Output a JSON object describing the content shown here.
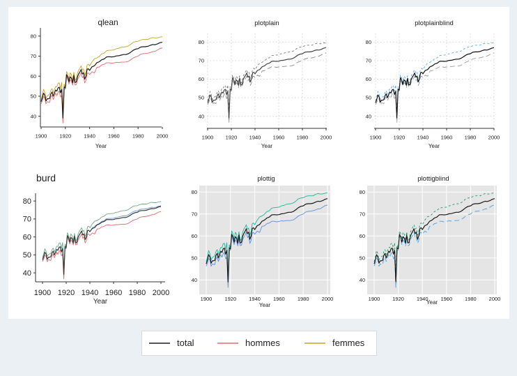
{
  "chart_data": [
    {
      "type": "line",
      "style": "qlean",
      "title": "qlean",
      "xlabel": "Year",
      "ylabel": "",
      "xlim": [
        1900,
        2000
      ],
      "ylim": [
        35,
        82
      ],
      "xticks": [
        "1900",
        "1920",
        "1940",
        "1960",
        "1980",
        "2000"
      ],
      "yticks": [
        "40",
        "50",
        "60",
        "70",
        "80"
      ],
      "grid": false,
      "background": "#ffffff",
      "series": [
        {
          "name": "total",
          "color": "#1a1a1a",
          "dash": ""
        },
        {
          "name": "hommes",
          "color": "#e06b6b",
          "dash": ""
        },
        {
          "name": "femmes",
          "color": "#c9a227",
          "dash": ""
        }
      ]
    },
    {
      "type": "line",
      "style": "plotplain",
      "title": "plotplain",
      "xlabel": "Year",
      "ylabel": "",
      "xlim": [
        1900,
        2000
      ],
      "ylim": [
        35,
        82
      ],
      "xticks": [
        "1900",
        "1920",
        "1940",
        "1960",
        "1980",
        "2000"
      ],
      "yticks": [
        "40",
        "50",
        "60",
        "70",
        "80"
      ],
      "grid": true,
      "background": "#ffffff",
      "series": [
        {
          "name": "total",
          "color": "#444444",
          "dash": ""
        },
        {
          "name": "hommes",
          "color": "#888888",
          "dash": "7,4"
        },
        {
          "name": "femmes",
          "color": "#777777",
          "dash": "3,3"
        }
      ]
    },
    {
      "type": "line",
      "style": "plotplainblind",
      "title": "plotplainblind",
      "xlabel": "Year",
      "ylabel": "",
      "xlim": [
        1900,
        2000
      ],
      "ylim": [
        35,
        82
      ],
      "xticks": [
        "1900",
        "1920",
        "1940",
        "1960",
        "1980",
        "2000"
      ],
      "yticks": [
        "40",
        "50",
        "60",
        "70",
        "80"
      ],
      "grid": true,
      "background": "#ffffff",
      "series": [
        {
          "name": "total",
          "color": "#111111",
          "dash": ""
        },
        {
          "name": "hommes",
          "color": "#999999",
          "dash": "7,4"
        },
        {
          "name": "femmes",
          "color": "#5aa9dd",
          "dash": "3,3"
        }
      ]
    },
    {
      "type": "line",
      "style": "burd",
      "title": "burd",
      "xlabel": "Year",
      "ylabel": "",
      "xlim": [
        1900,
        2000
      ],
      "ylim": [
        35,
        82
      ],
      "xticks": [
        "1900",
        "1920",
        "1940",
        "1960",
        "1980",
        "2000"
      ],
      "yticks": [
        "40",
        "50",
        "60",
        "70",
        "80"
      ],
      "grid": false,
      "background": "#ffffff",
      "series": [
        {
          "name": "total",
          "color": "#3a3a3a",
          "dash": ""
        },
        {
          "name": "hommes",
          "color": "#d96a6a",
          "dash": ""
        },
        {
          "name": "femmes",
          "color": "#6fa987",
          "dash": ""
        },
        {
          "name": "",
          "color": "#6e9fd6",
          "dash": ""
        }
      ]
    },
    {
      "type": "line",
      "style": "plottig",
      "title": "plottig",
      "xlabel": "Year",
      "ylabel": "",
      "xlim": [
        1900,
        2000
      ],
      "ylim": [
        35,
        82
      ],
      "xticks": [
        "1900",
        "1920",
        "1940",
        "1960",
        "1980",
        "2000"
      ],
      "yticks": [
        "40",
        "50",
        "60",
        "70",
        "80"
      ],
      "grid": true,
      "background": "#e5e5e5",
      "series": [
        {
          "name": "total",
          "color": "#1a1a1a",
          "dash": ""
        },
        {
          "name": "hommes",
          "color": "#5b8de0",
          "dash": ""
        },
        {
          "name": "femmes",
          "color": "#1fb59b",
          "dash": ""
        }
      ]
    },
    {
      "type": "line",
      "style": "plottigblind",
      "title": "plottigblind",
      "xlabel": "Year",
      "ylabel": "",
      "xlim": [
        1900,
        2000
      ],
      "ylim": [
        35,
        82
      ],
      "xticks": [
        "1900",
        "1920",
        "1940",
        "1960",
        "1980",
        "2000"
      ],
      "yticks": [
        "40",
        "50",
        "60",
        "70",
        "80"
      ],
      "grid": true,
      "background": "#e5e5e5",
      "series": [
        {
          "name": "total",
          "color": "#1a1a1a",
          "dash": ""
        },
        {
          "name": "hommes",
          "color": "#4aa0e0",
          "dash": "7,4"
        },
        {
          "name": "femmes",
          "color": "#1f9b6b",
          "dash": "3,3"
        }
      ]
    }
  ],
  "series_data": {
    "x": [
      1900,
      1901,
      1902,
      1903,
      1904,
      1905,
      1906,
      1907,
      1908,
      1909,
      1910,
      1911,
      1912,
      1913,
      1914,
      1915,
      1916,
      1917,
      1918,
      1919,
      1920,
      1921,
      1922,
      1923,
      1924,
      1925,
      1926,
      1927,
      1928,
      1929,
      1930,
      1931,
      1932,
      1933,
      1934,
      1935,
      1936,
      1937,
      1938,
      1939,
      1940,
      1942,
      1944,
      1946,
      1948,
      1950,
      1952,
      1954,
      1956,
      1958,
      1960,
      1962,
      1964,
      1966,
      1968,
      1970,
      1972,
      1974,
      1976,
      1978,
      1980,
      1982,
      1984,
      1986,
      1988,
      1990,
      1992,
      1994,
      1996,
      1998,
      2000
    ],
    "total": [
      47.3,
      49.1,
      51.5,
      50.5,
      47.6,
      48.7,
      48.7,
      48.9,
      51.1,
      52.1,
      50.0,
      51.5,
      53.1,
      52.5,
      54.2,
      54.5,
      51.7,
      53.5,
      39.1,
      54.7,
      54.1,
      60.8,
      59.6,
      57.2,
      59.7,
      59.0,
      56.7,
      60.4,
      56.8,
      57.1,
      59.7,
      61.1,
      62.1,
      63.3,
      61.1,
      61.7,
      58.5,
      60.0,
      63.5,
      63.7,
      62.9,
      64.7,
      65.2,
      66.7,
      67.2,
      68.2,
      68.6,
      69.6,
      69.7,
      69.6,
      69.7,
      70.1,
      70.2,
      70.5,
      70.8,
      70.8,
      71.2,
      72.0,
      72.9,
      73.5,
      73.7,
      74.5,
      74.7,
      74.7,
      74.9,
      75.4,
      75.8,
      75.7,
      76.1,
      76.7,
      77.0
    ],
    "hommes": [
      46.3,
      47.6,
      49.8,
      49.1,
      46.2,
      47.3,
      47.1,
      46.9,
      49.5,
      50.5,
      48.4,
      49.9,
      51.5,
      50.3,
      52.0,
      52.5,
      49.6,
      50.3,
      36.6,
      53.5,
      53.6,
      60.0,
      58.4,
      56.1,
      58.1,
      57.6,
      55.5,
      59.0,
      55.6,
      55.8,
      58.1,
      59.4,
      60.3,
      61.7,
      59.3,
      59.9,
      56.6,
      58.0,
      61.4,
      61.6,
      60.8,
      62.2,
      61.6,
      64.4,
      64.6,
      65.6,
      65.9,
      66.7,
      66.7,
      66.4,
      66.6,
      66.9,
      66.8,
      67.0,
      67.0,
      67.1,
      67.4,
      68.2,
      69.1,
      69.6,
      70.0,
      70.9,
      71.2,
      71.3,
      71.5,
      71.8,
      72.3,
      72.4,
      73.1,
      73.8,
      74.1
    ],
    "femmes": [
      48.3,
      50.6,
      53.4,
      52.0,
      49.1,
      50.2,
      50.5,
      50.9,
      52.9,
      53.8,
      51.6,
      53.3,
      54.8,
      54.7,
      56.5,
      56.7,
      53.7,
      56.9,
      42.2,
      56.0,
      54.6,
      62.3,
      61.0,
      58.4,
      61.7,
      60.8,
      57.9,
      61.9,
      58.0,
      58.5,
      61.5,
      63.0,
      64.0,
      65.1,
      63.1,
      63.6,
      60.4,
      62.0,
      65.6,
      65.9,
      65.1,
      67.2,
      68.7,
      69.1,
      69.9,
      71.1,
      71.5,
      72.7,
      72.9,
      73.0,
      73.1,
      73.7,
      73.9,
      74.4,
      74.6,
      74.7,
      75.1,
      75.9,
      76.9,
      77.3,
      77.4,
      78.0,
      78.3,
      78.3,
      78.3,
      78.9,
      79.3,
      79.1,
      79.1,
      79.5,
      79.7
    ]
  },
  "legend": {
    "items": [
      {
        "label": "total",
        "color": "#1a1a1a"
      },
      {
        "label": "hommes",
        "color": "#e06b6b"
      },
      {
        "label": "femmes",
        "color": "#c9a227"
      }
    ]
  }
}
